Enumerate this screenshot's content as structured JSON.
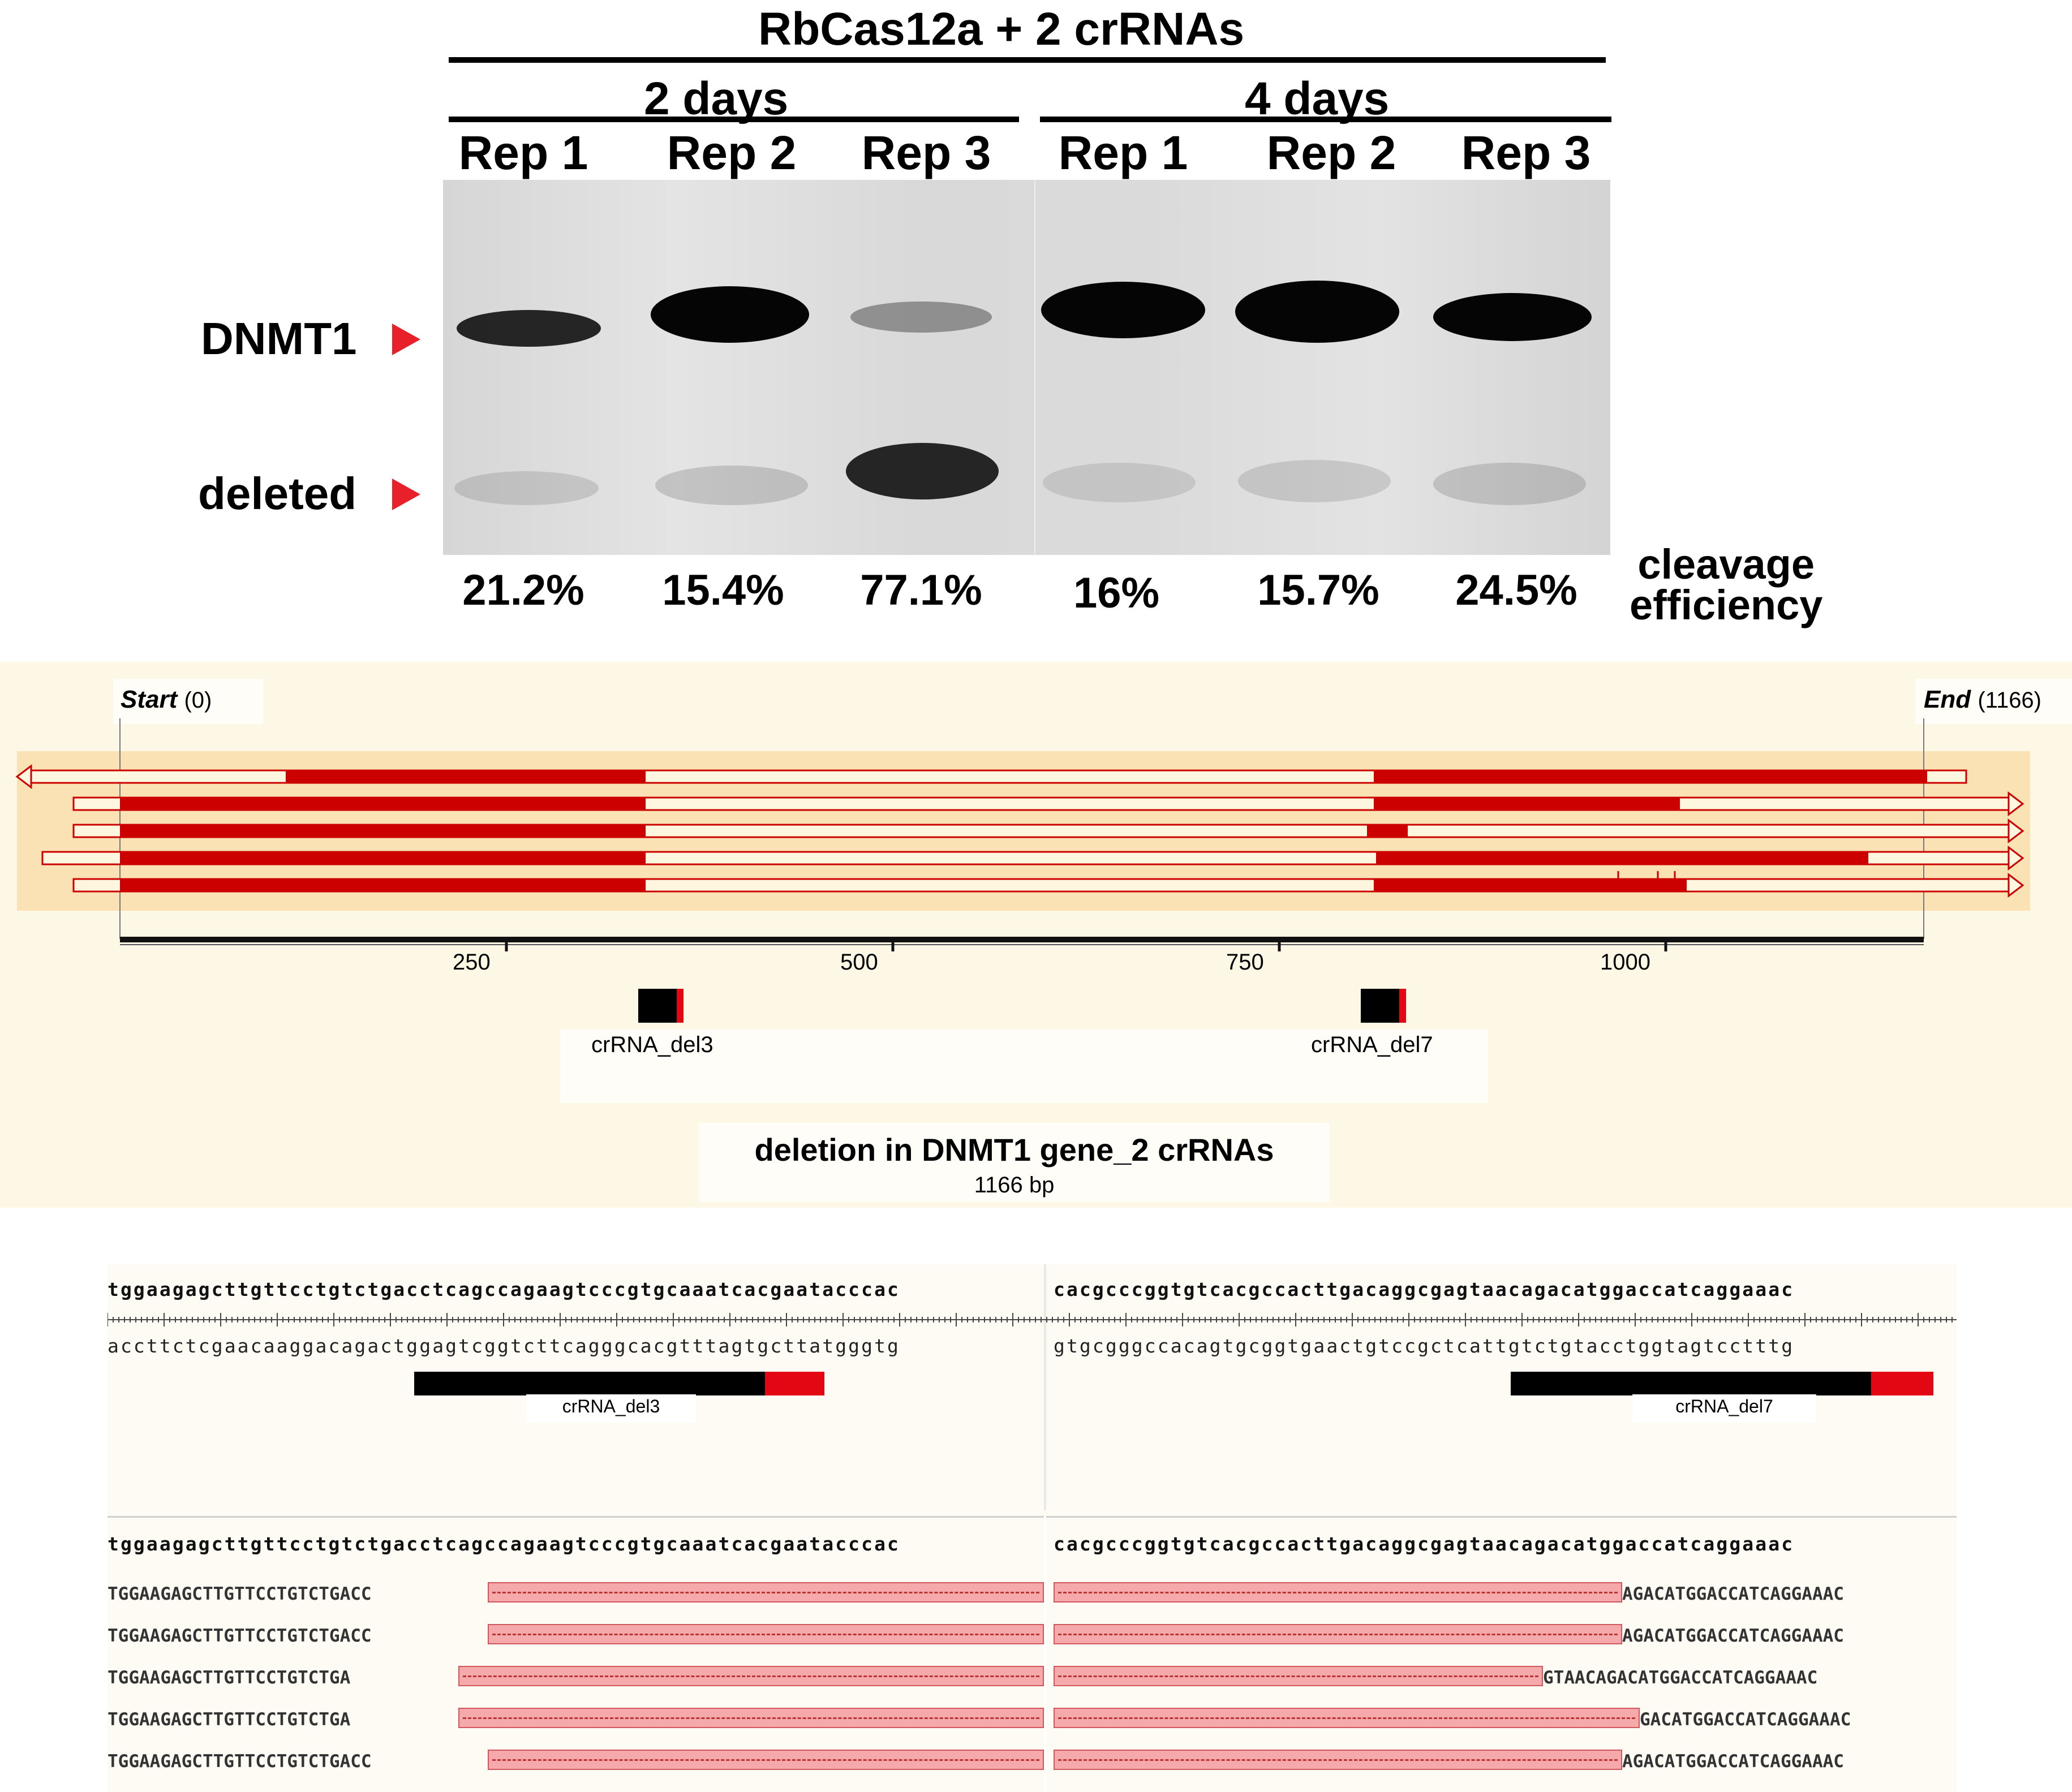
{
  "gel": {
    "title": "RbCas12a + 2 crRNAs",
    "groups": [
      {
        "label": "2 days",
        "lanes": [
          "Rep 1",
          "Rep 2",
          "Rep 3"
        ]
      },
      {
        "label": "4 days",
        "lanes": [
          "Rep 1",
          "Rep 2",
          "Rep 3"
        ]
      }
    ],
    "band_labels": {
      "top": "DNMT1",
      "bottom": "deleted"
    },
    "arrow_color": "#e8202a",
    "efficiencies": [
      "21.2%",
      "15.4%",
      "77.1%",
      "16%",
      "15.7%",
      "24.5%"
    ],
    "efficiency_label_line1": "cleavage",
    "efficiency_label_line2": "efficiency"
  },
  "map": {
    "start_label": "Start",
    "start_value": "(0)",
    "end_label": "End",
    "end_value": "(1166)",
    "ticks": [
      "250",
      "500",
      "750",
      "1000"
    ],
    "features": [
      "crRNA_del3",
      "crRNA_del7"
    ],
    "title": "deletion in DNMT1 gene_2 crRNAs",
    "subtitle": "1166 bp",
    "read_color": "#cc0000",
    "background_color": "#fdf7e6"
  },
  "alignment": {
    "ref_left": "tggaagagcttgttcctgtctgacctcagccagaagtcccgtgcaaatcacgaatacccac",
    "ref_right": "cacgcccggtgtcacgccacttgacaggcgagtaacagacatggaccatcaggaaac",
    "comp_left": "accttctcgaacaaggacagactggagtcggtcttcagggcacgtttagtgcttatgggtg",
    "comp_right": "gtgcgggccacagtgcggtgaactgtccgctcattgtctgtacctggtagtcctttg",
    "guide_left": "crRNA_del3",
    "guide_right": "crRNA_del7",
    "reads": [
      {
        "left": "TGGAAGAGCTTGTTCCTGTCTGACC",
        "right": "AGACATGGACCATCAGGAAAC"
      },
      {
        "left": "TGGAAGAGCTTGTTCCTGTCTGACC",
        "right": "AGACATGGACCATCAGGAAAC"
      },
      {
        "left": "TGGAAGAGCTTGTTCCTGTCTGA",
        "right": "GTAACAGACATGGACCATCAGGAAAC"
      },
      {
        "left": "TGGAAGAGCTTGTTCCTGTCTGA",
        "right": "GACATGGACCATCAGGAAAC"
      },
      {
        "left": "TGGAAGAGCTTGTTCCTGTCTGACC",
        "right": "AGACATGGACCATCAGGAAAC"
      }
    ]
  }
}
